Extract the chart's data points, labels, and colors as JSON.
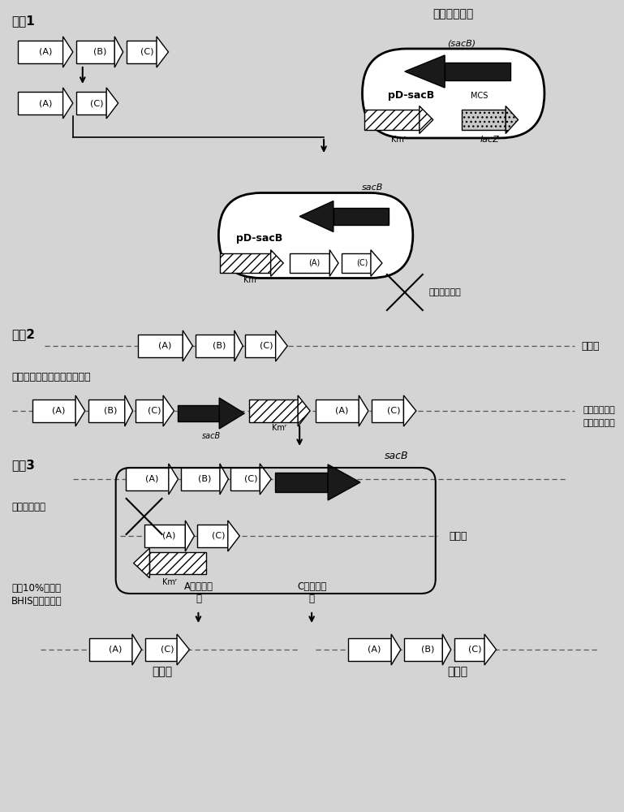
{
  "bg_color": "#d4d4d4",
  "text_color": "#1a1a1a",
  "step1_label": "步骤1",
  "step2_label": "步骤2",
  "step3_label": "步骤3",
  "sucrose_death_gene": "蔗糖致死基因",
  "sacB_label": "sacB",
  "sacB_paren": "(sacB)",
  "pD_sacB": "pD-sacB",
  "MCS_label": "MCS",
  "lacZ_label": "lacZ",
  "Kmr_label": "Kmʳ",
  "first_exchange": "第一次单交换",
  "second_exchange": "第二次单交换",
  "genome_label": "基因组",
  "screen_label": "筛选具有卡那霉素抗性的菌落",
  "complete_first_line1": "完成第一次单",
  "complete_first_line2": "交换的基因组",
  "selection_label": "在含10%蔗糖的\nBHIS平板上筛选",
  "recombA": "A区发生重\n组",
  "recombC": "C区发生重\n组",
  "mutant_label": "突变型",
  "wildtype_label": "野生型",
  "A_label": "(A)",
  "B_label": "(B)",
  "C_label": "(C)"
}
